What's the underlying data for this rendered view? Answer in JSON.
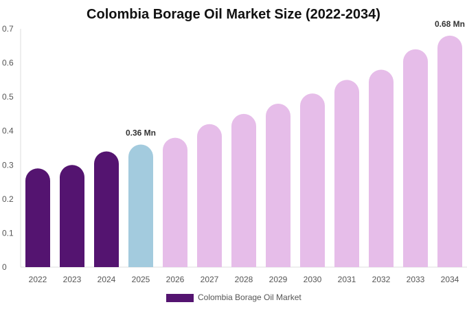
{
  "chart_data": {
    "type": "bar",
    "title": "Colombia Borage Oil Market Size (2022-2034)",
    "xlabel": "",
    "ylabel": "",
    "categories": [
      "2022",
      "2023",
      "2024",
      "2025",
      "2026",
      "2027",
      "2028",
      "2029",
      "2030",
      "2031",
      "2032",
      "2033",
      "2034"
    ],
    "series": [
      {
        "name": "Colombia Borage Oil Market",
        "values": [
          0.29,
          0.3,
          0.34,
          0.36,
          0.38,
          0.42,
          0.45,
          0.48,
          0.51,
          0.55,
          0.58,
          0.64,
          0.68
        ]
      }
    ],
    "ylim": [
      0,
      0.7
    ],
    "yticks": [
      "0",
      "0.1",
      "0.2",
      "0.3",
      "0.4",
      "0.5",
      "0.6",
      "0.7"
    ],
    "data_labels": [
      {
        "index": 3,
        "text": "0.36 Mn"
      },
      {
        "index": 12,
        "text": "0.68 Mn"
      }
    ],
    "bar_colors": {
      "historical": "#541470",
      "base_year": "#a3cbde",
      "forecast": "#e6bde9"
    },
    "historical_count": 3,
    "base_index": 3,
    "grid": false,
    "legend": {
      "position": "bottom",
      "color": "#541470"
    }
  }
}
